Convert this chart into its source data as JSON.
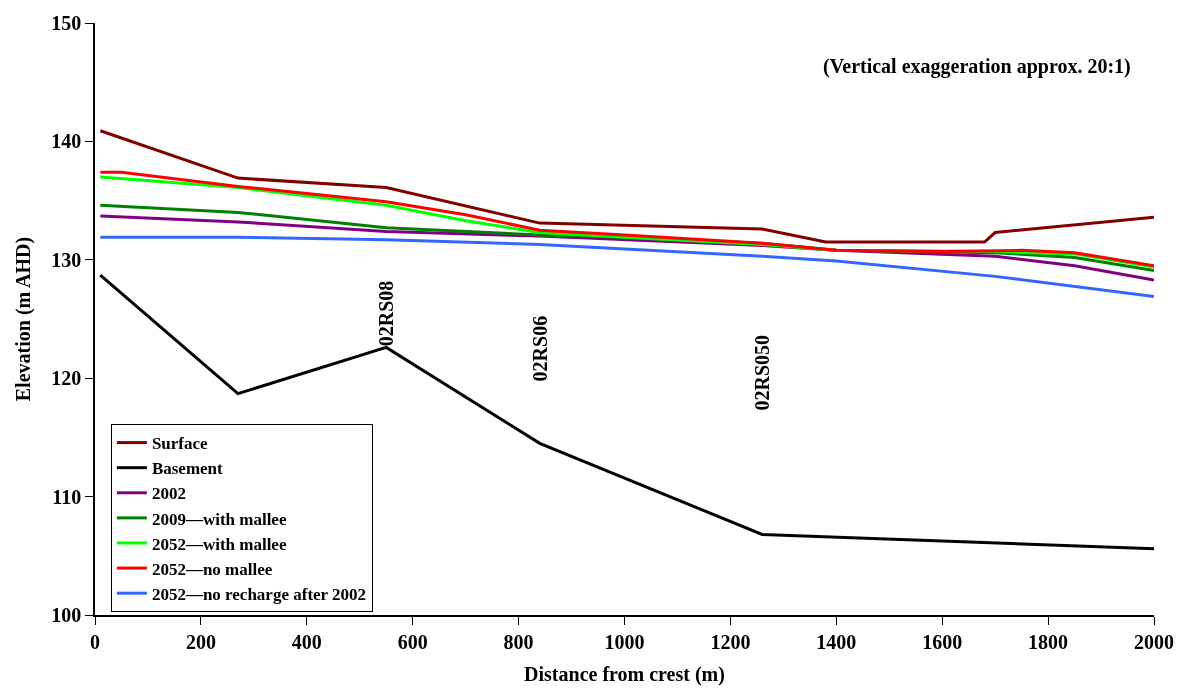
{
  "chart_data": {
    "type": "line",
    "xlabel": "Distance from crest (m)",
    "ylabel": "Elevation (m AHD)",
    "xlim": [
      0,
      2000
    ],
    "xticks": [
      0,
      200,
      400,
      600,
      800,
      1000,
      1200,
      1400,
      1600,
      1800,
      2000
    ],
    "ylim": [
      100,
      150
    ],
    "yticks": [
      100,
      110,
      120,
      130,
      140,
      150
    ],
    "legend": "bottom left",
    "marker": "none",
    "line_style": "solid",
    "annotations": [
      "(Vertical exaggeration approx. 20:1)",
      "02RS08",
      "02RS06",
      "02RS050"
    ],
    "series": [
      {
        "name": "Surface",
        "color": "#800000",
        "x": [
          10,
          270,
          550,
          840,
          1260,
          1380,
          1680,
          1700,
          2000
        ],
        "values": [
          140.9,
          136.9,
          136.1,
          133.1,
          132.6,
          131.5,
          131.5,
          132.3,
          133.6
        ]
      },
      {
        "name": "Basement",
        "color": "#000000",
        "x": [
          10,
          270,
          550,
          840,
          1260,
          2000
        ],
        "values": [
          128.7,
          118.7,
          122.6,
          114.5,
          106.8,
          105.6
        ]
      },
      {
        "name": "2002",
        "color": "#800080",
        "x": [
          10,
          270,
          550,
          840,
          1260,
          1400,
          1700,
          1850,
          2000
        ],
        "values": [
          133.7,
          133.2,
          132.4,
          132.0,
          131.2,
          130.8,
          130.3,
          129.5,
          128.3
        ]
      },
      {
        "name": "2009—with mallee",
        "color": "#008000",
        "x": [
          10,
          270,
          550,
          840,
          1000,
          1260,
          1400,
          1700,
          1850,
          2000
        ],
        "values": [
          134.6,
          134.0,
          132.7,
          132.1,
          131.9,
          131.4,
          130.8,
          130.6,
          130.2,
          129.1
        ]
      },
      {
        "name": "2052—with mallee",
        "color": "#00ff00",
        "x": [
          10,
          270,
          550,
          700,
          840,
          1000,
          1260,
          1400,
          1700,
          1850,
          2000
        ],
        "values": [
          137.0,
          136.1,
          134.6,
          133.3,
          132.3,
          131.9,
          131.3,
          130.8,
          130.7,
          130.5,
          129.4
        ]
      },
      {
        "name": "2052—no mallee",
        "color": "#ff0000",
        "x": [
          10,
          50,
          270,
          550,
          700,
          840,
          1000,
          1260,
          1400,
          1600,
          1750,
          1850,
          2000
        ],
        "values": [
          137.4,
          137.4,
          136.2,
          134.9,
          133.8,
          132.5,
          132.1,
          131.4,
          130.8,
          130.7,
          130.8,
          130.6,
          129.5
        ]
      },
      {
        "name": "2052—no recharge after 2002",
        "color": "#3366ff",
        "x": [
          10,
          270,
          550,
          840,
          1260,
          1400,
          1700,
          2000
        ],
        "values": [
          131.9,
          131.9,
          131.7,
          131.3,
          130.3,
          129.9,
          128.6,
          126.9
        ]
      }
    ]
  }
}
